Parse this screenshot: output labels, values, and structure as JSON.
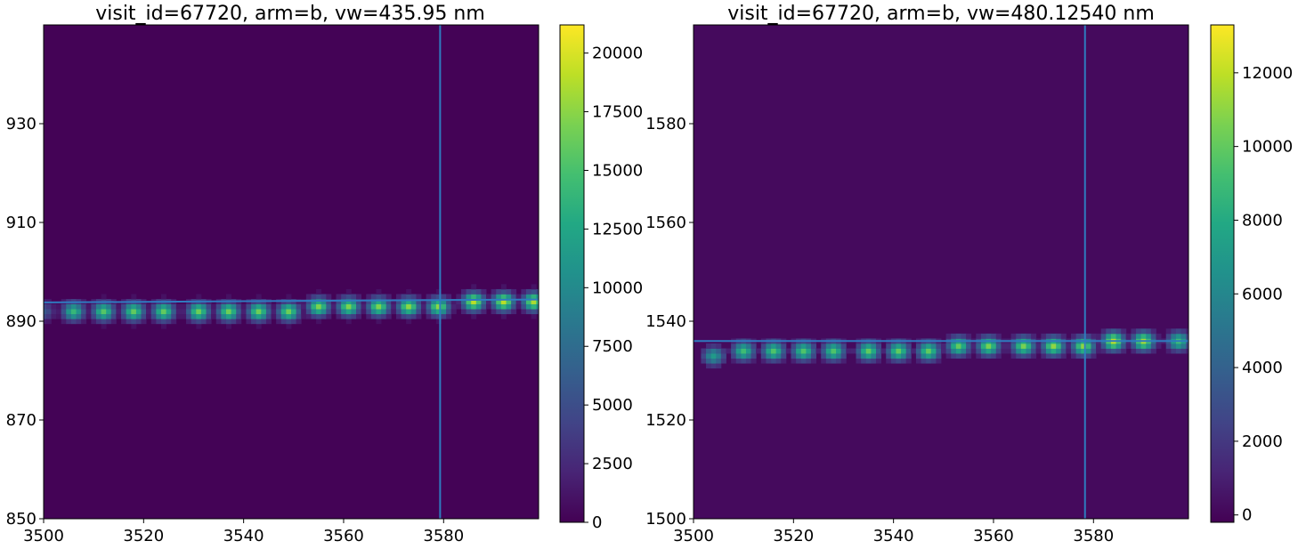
{
  "chart_data": [
    {
      "type": "heatmap",
      "title": "visit_id=67720, arm=b, vw=435.95 nm",
      "xlim": [
        3500,
        3599
      ],
      "ylim": [
        850,
        950
      ],
      "x_ticks": [
        3500,
        3520,
        3540,
        3560,
        3580
      ],
      "y_ticks": [
        850,
        870,
        890,
        910,
        930
      ],
      "vline_x": 3579.3,
      "trace": {
        "x_start": 3500,
        "x_end": 3599,
        "y_start": 893.8,
        "y_end": 894.4
      },
      "spots": {
        "x": [
          3500,
          3506.1,
          3512.2,
          3518.3,
          3524.4,
          3530.5,
          3536.7,
          3542.8,
          3548.9,
          3555.0,
          3561.1,
          3567.2,
          3573.3,
          3579.4,
          3585.6,
          3591.7,
          3597.8
        ],
        "y": [
          891.5,
          891.6,
          891.7,
          891.8,
          891.9,
          892.0,
          892.1,
          892.2,
          892.3,
          892.5,
          892.6,
          892.8,
          893.0,
          893.3,
          893.6,
          893.9,
          894.2
        ],
        "peak": [
          6000,
          14000,
          15500,
          16000,
          16000,
          16500,
          16500,
          16500,
          16500,
          17000,
          17000,
          17000,
          17500,
          17500,
          19000,
          19000,
          18500
        ]
      },
      "colorbar": {
        "min": 0,
        "max": 21200,
        "ticks": [
          0,
          2500,
          5000,
          7500,
          10000,
          12500,
          15000,
          17500,
          20000
        ]
      }
    },
    {
      "type": "heatmap",
      "title": "visit_id=67720, arm=b, vw=480.12540 nm",
      "xlim": [
        3500,
        3599
      ],
      "ylim": [
        1500,
        1600
      ],
      "x_ticks": [
        3500,
        3520,
        3540,
        3560,
        3580
      ],
      "y_ticks": [
        1500,
        1520,
        1540,
        1560,
        1580
      ],
      "vline_x": 3578.3,
      "trace": {
        "x_start": 3500,
        "x_end": 3599,
        "y_start": 1536.0,
        "y_end": 1536.0
      },
      "spots": {
        "x": [
          3503.7,
          3509.8,
          3516.0,
          3522.2,
          3528.4,
          3534.6,
          3540.8,
          3547.0,
          3553.2,
          3559.4,
          3565.6,
          3571.8,
          3578.0,
          3584.2,
          3590.4,
          3596.6
        ],
        "y": [
          1533.3,
          1533.5,
          1533.6,
          1533.7,
          1533.8,
          1534.0,
          1534.2,
          1534.3,
          1534.5,
          1534.7,
          1534.9,
          1535.1,
          1535.3,
          1535.5,
          1535.7,
          1535.9
        ],
        "peak": [
          7000,
          9000,
          9500,
          9500,
          9500,
          10000,
          10000,
          10000,
          10000,
          10500,
          10500,
          11000,
          11000,
          12000,
          11500,
          9000
        ]
      },
      "colorbar": {
        "min": -200,
        "max": 13300,
        "ticks": [
          0,
          2000,
          4000,
          6000,
          8000,
          10000,
          12000
        ]
      }
    }
  ]
}
